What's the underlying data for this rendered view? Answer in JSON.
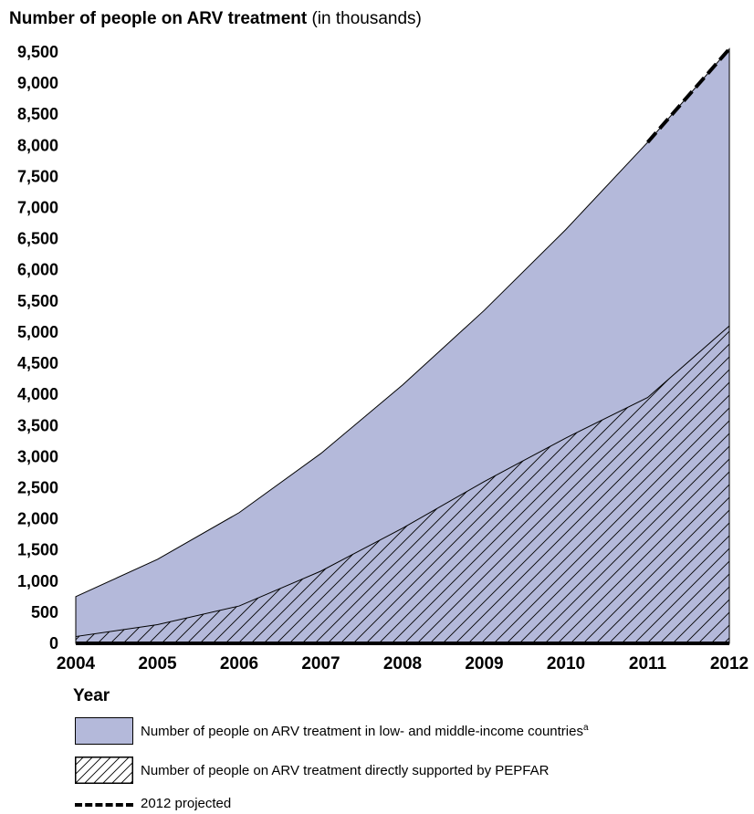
{
  "chart_data": {
    "type": "area",
    "title_bold": "Number of people on ARV treatment",
    "title_rest": " (in thousands)",
    "xlabel": "Year",
    "x": [
      2004,
      2005,
      2006,
      2007,
      2008,
      2009,
      2010,
      2011,
      2012
    ],
    "ylim": [
      0,
      9500
    ],
    "yticks": [
      0,
      500,
      1000,
      1500,
      2000,
      2500,
      3000,
      3500,
      4000,
      4500,
      5000,
      5500,
      6000,
      6500,
      7000,
      7500,
      8000,
      8500,
      9000,
      9500
    ],
    "ytick_labels": [
      "0",
      "500",
      "1,000",
      "1,500",
      "2,000",
      "2,500",
      "3,000",
      "3,500",
      "4,000",
      "4,500",
      "5,000",
      "5,500",
      "6,000",
      "6,500",
      "7,000",
      "7,500",
      "8,000",
      "8,500",
      "9,000",
      "9,500"
    ],
    "series": [
      {
        "name": "Number of people on ARV treatment in low- and middle-income countries",
        "footnote": "a",
        "fill": "#b4b9da",
        "pattern": "solid",
        "values": [
          750,
          1350,
          2100,
          3050,
          4150,
          5350,
          6650,
          8050,
          9550
        ],
        "projected_segment": [
          2011,
          2012
        ]
      },
      {
        "name": "Number of people on ARV treatment directly supported by PEPFAR",
        "fill": "#b4b9da",
        "pattern": "hatch",
        "values": [
          110,
          300,
          600,
          1160,
          1850,
          2600,
          3300,
          3950,
          5100
        ]
      }
    ],
    "legend": {
      "placement": "bottom",
      "entries": [
        {
          "label": "Number of people on ARV treatment in low- and middle-income countries",
          "sup": "a"
        },
        {
          "label": "Number of people on ARV treatment directly supported by PEPFAR"
        },
        {
          "label": "2012 projected"
        }
      ]
    },
    "grid": false
  }
}
